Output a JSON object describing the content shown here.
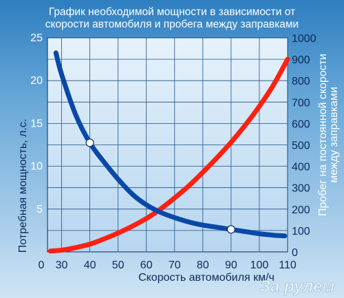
{
  "chart_data": {
    "type": "line",
    "title": "График необходимой мощности в зависимости от скорости автомобиля и пробега между заправками",
    "title_lines": [
      "График необходимой мощности в зависимости от",
      "скорости автомобиля и пробега между заправками"
    ],
    "xlabel": "Скорость автомобиля км/ч",
    "ylabel_left": "Потребная мощность, л.с.",
    "ylabel_right_lines": [
      "Пробег на постоянной скорости",
      "между заправками"
    ],
    "x_ticks": [
      "0",
      "30",
      "40",
      "50",
      "60",
      "70",
      "80",
      "90",
      "100",
      "110"
    ],
    "y_left_ticks": [
      "5",
      "10",
      "15",
      "20",
      "25"
    ],
    "y_right_ticks": [
      "0",
      "100",
      "200",
      "300",
      "400",
      "500",
      "600",
      "700",
      "800",
      "900",
      "1000"
    ],
    "xlim": [
      25,
      110
    ],
    "ylim_left": [
      0,
      25
    ],
    "ylim_right": [
      0,
      1000
    ],
    "grid": true,
    "series": [
      {
        "axis": "left",
        "color": "#ff2010",
        "x": [
          26,
          30,
          35,
          40,
          45,
          50,
          55,
          60,
          65,
          70,
          75,
          80,
          85,
          90,
          95,
          100,
          105,
          110
        ],
        "y": [
          0.1,
          0.2,
          0.5,
          0.9,
          1.5,
          2.2,
          3.0,
          3.9,
          5.0,
          6.3,
          7.7,
          9.3,
          11.0,
          12.8,
          14.8,
          17.0,
          19.5,
          22.5
        ]
      },
      {
        "axis": "right",
        "color": "#0a48a8",
        "x": [
          28,
          30,
          35,
          40,
          45,
          50,
          55,
          60,
          65,
          70,
          75,
          80,
          85,
          90,
          95,
          100,
          105,
          109
        ],
        "y": [
          930,
          830,
          640,
          510,
          420,
          340,
          270,
          220,
          185,
          160,
          140,
          125,
          115,
          105,
          95,
          85,
          78,
          75
        ]
      }
    ],
    "markers": [
      {
        "x": 40,
        "y": 510,
        "axis": "right"
      },
      {
        "x": 90,
        "y": 105,
        "axis": "right"
      }
    ]
  },
  "colors": {
    "plot_bg_top": "#dfeefa",
    "plot_bg_bottom": "#bad9f2",
    "frame_bg_top": "#2e7ec0",
    "frame_bg_bottom": "#cfe4f5",
    "text_dark": "#0a2a5a",
    "grid": "#1f4f80"
  },
  "watermark": "За рулем"
}
